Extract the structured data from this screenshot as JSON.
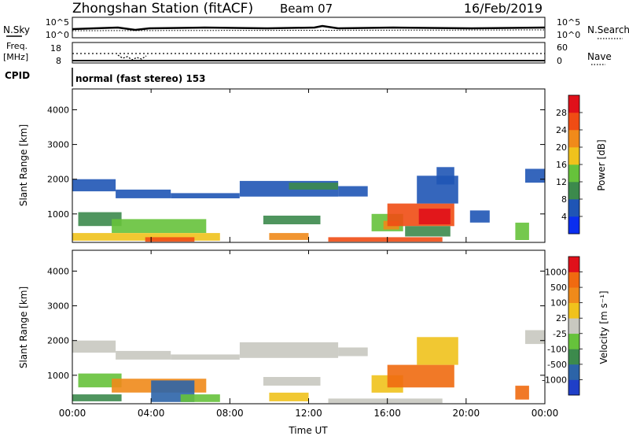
{
  "header": {
    "station": "Zhongshan Station (fitACF)",
    "beam": "Beam 07",
    "date": "16/Feb/2019"
  },
  "strip_labels": {
    "nsky": "N.Sky",
    "nsky_ticks": [
      "10^5",
      "10^0"
    ],
    "nsearch": "N.Search",
    "nsearch_ticks": [
      "10^5",
      "10^0"
    ],
    "freq_top": "Freq.",
    "freq_unit": "[MHz]",
    "freq_ticks": [
      "18",
      "8"
    ],
    "nave": "Nave",
    "nave_ticks": [
      "60",
      "0"
    ],
    "cpid": "CPID",
    "cpid_value": "normal (fast stereo) 153"
  },
  "chart_data": [
    {
      "type": "heatmap",
      "panel": "power",
      "ylabel": "Slant Range [km]",
      "y_ticks": [
        "1000",
        "2000",
        "3000",
        "4000"
      ],
      "ylim": [
        180,
        4600
      ],
      "xlim_hours": [
        0,
        24
      ],
      "colorbar": {
        "label": "Power [dB]",
        "ticks": [
          "4",
          "8",
          "12",
          "16",
          "20",
          "24",
          "28"
        ],
        "colors": [
          "#0a2ef0",
          "#1f55b5",
          "#3c8a4c",
          "#66c23b",
          "#f0c21c",
          "#f08a1a",
          "#f04c14",
          "#e0101a"
        ]
      },
      "regions": [
        {
          "x0": 0.0,
          "x1": 2.2,
          "y0": 1650,
          "y1": 2000,
          "level": 1
        },
        {
          "x0": 2.2,
          "x1": 5.0,
          "y0": 1450,
          "y1": 1700,
          "level": 1
        },
        {
          "x0": 5.0,
          "x1": 8.5,
          "y0": 1450,
          "y1": 1600,
          "level": 1
        },
        {
          "x0": 8.5,
          "x1": 13.5,
          "y0": 1500,
          "y1": 1950,
          "level": 1
        },
        {
          "x0": 11.0,
          "x1": 13.5,
          "y0": 1700,
          "y1": 1900,
          "level": 2
        },
        {
          "x0": 13.5,
          "x1": 15.0,
          "y0": 1500,
          "y1": 1800,
          "level": 1
        },
        {
          "x0": 0.3,
          "x1": 2.5,
          "y0": 650,
          "y1": 1050,
          "level": 2
        },
        {
          "x0": 2.0,
          "x1": 6.8,
          "y0": 450,
          "y1": 850,
          "level": 3
        },
        {
          "x0": 9.7,
          "x1": 12.6,
          "y0": 700,
          "y1": 950,
          "level": 2
        },
        {
          "x0": 0.0,
          "x1": 7.5,
          "y0": 230,
          "y1": 450,
          "level": 4
        },
        {
          "x0": 3.7,
          "x1": 6.2,
          "y0": 200,
          "y1": 330,
          "level": 6
        },
        {
          "x0": 10.0,
          "x1": 12.0,
          "y0": 250,
          "y1": 450,
          "level": 5
        },
        {
          "x0": 15.2,
          "x1": 16.8,
          "y0": 500,
          "y1": 1000,
          "level": 3
        },
        {
          "x0": 15.8,
          "x1": 16.6,
          "y0": 550,
          "y1": 800,
          "level": 5
        },
        {
          "x0": 16.0,
          "x1": 19.4,
          "y0": 650,
          "y1": 1300,
          "level": 6
        },
        {
          "x0": 17.6,
          "x1": 19.2,
          "y0": 700,
          "y1": 1150,
          "level": 7
        },
        {
          "x0": 16.9,
          "x1": 19.2,
          "y0": 350,
          "y1": 650,
          "level": 2
        },
        {
          "x0": 17.5,
          "x1": 19.6,
          "y0": 1300,
          "y1": 2100,
          "level": 1
        },
        {
          "x0": 18.5,
          "x1": 19.4,
          "y0": 1850,
          "y1": 2350,
          "level": 1
        },
        {
          "x0": 13.0,
          "x1": 18.8,
          "y0": 200,
          "y1": 330,
          "level": 6
        },
        {
          "x0": 20.2,
          "x1": 21.2,
          "y0": 750,
          "y1": 1100,
          "level": 1
        },
        {
          "x0": 22.5,
          "x1": 23.2,
          "y0": 250,
          "y1": 750,
          "level": 3
        },
        {
          "x0": 23.0,
          "x1": 24.0,
          "y0": 1900,
          "y1": 2300,
          "level": 1
        }
      ]
    },
    {
      "type": "heatmap",
      "panel": "velocity",
      "xlabel": "Time UT",
      "ylabel": "Slant Range [km]",
      "y_ticks": [
        "1000",
        "2000",
        "3000",
        "4000"
      ],
      "x_ticks": [
        "00:00",
        "04:00",
        "08:00",
        "12:00",
        "16:00",
        "20:00",
        "00:00"
      ],
      "ylim": [
        180,
        4600
      ],
      "xlim_hours": [
        0,
        24
      ],
      "colorbar": {
        "label": "Velocity [m s⁻¹]",
        "ticks": [
          "1000",
          "500",
          "100",
          "25",
          "-25",
          "-100",
          "-500",
          "-1000"
        ],
        "colors": [
          "#1f3fc8",
          "#2c64a8",
          "#3c8a4c",
          "#66c23b",
          "#c8c8c0",
          "#f0c21c",
          "#f08a1a",
          "#f06a10",
          "#e0101a"
        ]
      },
      "regions": [
        {
          "x0": 0.0,
          "x1": 2.2,
          "y0": 1650,
          "y1": 2000,
          "level": 4
        },
        {
          "x0": 2.2,
          "x1": 5.0,
          "y0": 1450,
          "y1": 1700,
          "level": 4
        },
        {
          "x0": 5.0,
          "x1": 8.5,
          "y0": 1450,
          "y1": 1600,
          "level": 4
        },
        {
          "x0": 8.5,
          "x1": 13.5,
          "y0": 1500,
          "y1": 1950,
          "level": 4
        },
        {
          "x0": 13.5,
          "x1": 15.0,
          "y0": 1550,
          "y1": 1800,
          "level": 4
        },
        {
          "x0": 0.3,
          "x1": 2.5,
          "y0": 650,
          "y1": 1050,
          "level": 3
        },
        {
          "x0": 2.0,
          "x1": 6.8,
          "y0": 500,
          "y1": 900,
          "level": 6
        },
        {
          "x0": 9.7,
          "x1": 12.6,
          "y0": 700,
          "y1": 950,
          "level": 4
        },
        {
          "x0": 0.0,
          "x1": 2.5,
          "y0": 250,
          "y1": 450,
          "level": 2
        },
        {
          "x0": 4.0,
          "x1": 6.2,
          "y0": 230,
          "y1": 850,
          "level": 1
        },
        {
          "x0": 5.5,
          "x1": 7.5,
          "y0": 230,
          "y1": 450,
          "level": 3
        },
        {
          "x0": 10.0,
          "x1": 12.0,
          "y0": 250,
          "y1": 500,
          "level": 5
        },
        {
          "x0": 15.2,
          "x1": 16.8,
          "y0": 500,
          "y1": 1000,
          "level": 5
        },
        {
          "x0": 16.0,
          "x1": 19.4,
          "y0": 650,
          "y1": 1300,
          "level": 7
        },
        {
          "x0": 17.5,
          "x1": 19.6,
          "y0": 1300,
          "y1": 2100,
          "level": 5
        },
        {
          "x0": 13.0,
          "x1": 18.8,
          "y0": 200,
          "y1": 330,
          "level": 4
        },
        {
          "x0": 22.5,
          "x1": 23.2,
          "y0": 300,
          "y1": 700,
          "level": 7
        },
        {
          "x0": 23.0,
          "x1": 24.0,
          "y0": 1900,
          "y1": 2300,
          "level": 4
        }
      ]
    }
  ]
}
